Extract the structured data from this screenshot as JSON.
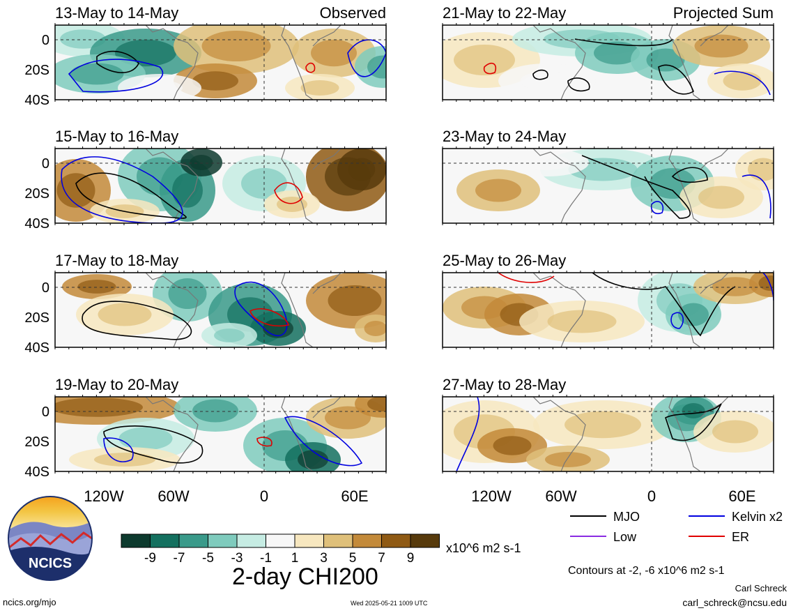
{
  "chart_data": {
    "type": "heatmap",
    "title": "2-day CHI200",
    "colorbar": {
      "units": "x10^6 m2 s-1",
      "tick_labels": [
        "-9",
        "-7",
        "-5",
        "-3",
        "-1",
        "1",
        "3",
        "5",
        "7",
        "9"
      ],
      "colors": [
        "#0d3a2e",
        "#14705f",
        "#3a9a8a",
        "#7fcbbd",
        "#c6ece3",
        "#f7f7f7",
        "#f7e7bf",
        "#dfc07a",
        "#c38a3a",
        "#8f5a14",
        "#573a0c"
      ]
    },
    "x_tick_labels": [
      "120W",
      "60W",
      "0",
      "60E"
    ],
    "y_tick_labels": [
      "0",
      "20S",
      "40S"
    ],
    "columns": [
      {
        "label": "Observed",
        "panels": [
          "13-May to 14-May",
          "15-May to 16-May",
          "17-May to 18-May",
          "19-May to 20-May"
        ]
      },
      {
        "label": "Projected Sum",
        "panels": [
          "21-May to 22-May",
          "23-May to 24-May",
          "25-May to 26-May",
          "27-May to 28-May"
        ]
      }
    ],
    "legend": {
      "placement": "bottom-right",
      "items": [
        {
          "label": "MJO",
          "color": "#000000"
        },
        {
          "label": "Kelvin x2",
          "color": "#0000e0"
        },
        {
          "label": "Low",
          "color": "#8a2be2"
        },
        {
          "label": "ER",
          "color": "#e00000"
        }
      ]
    },
    "contour_note": "Contours at -2, -6 x10^6 m2 s-1"
  },
  "logo": {
    "text": "NCICS"
  },
  "footer": {
    "left": "ncics.org/mjo",
    "center": "Wed 2025-05-21 1009 UTC",
    "right_name": "Carl Schreck",
    "right_email": "carl_schreck@ncsu.edu"
  }
}
